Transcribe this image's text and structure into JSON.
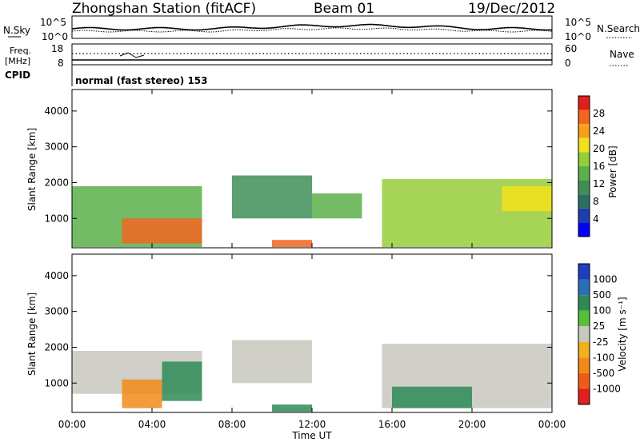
{
  "header": {
    "title": "Zhongshan Station (fitACF)",
    "beam": "Beam 01",
    "date": "19/Dec/2012"
  },
  "top_panels": {
    "nsky_label": "N.Sky",
    "nsearch_label": "N.Search",
    "left_ticks": [
      "10^5",
      "10^0"
    ],
    "right_ticks": [
      "10^5",
      "10^0"
    ],
    "freq_label_1": "Freq.",
    "freq_label_2": "[MHz]",
    "freq_ticks": [
      "18",
      "8"
    ],
    "nave_ticks": [
      "60",
      "0"
    ],
    "nave_label": "Nave",
    "cpid_label": "CPID",
    "mode_text": "normal (fast stereo) 153"
  },
  "power_panel": {
    "ylabel": "Slant Range [km]",
    "yticks": [
      "4000",
      "3000",
      "2000",
      "1000"
    ],
    "colorbar_label": "Power [dB]",
    "colorbar_ticks": [
      "28",
      "24",
      "20",
      "16",
      "12",
      "8",
      "4"
    ],
    "colors": [
      "#0000ff",
      "#1c3fa8",
      "#2d6e63",
      "#3f8e57",
      "#5bb04a",
      "#95cc3a",
      "#f2e21b",
      "#f7a11a",
      "#f26522",
      "#e0201c"
    ]
  },
  "velocity_panel": {
    "ylabel": "Slant Range [km]",
    "yticks": [
      "4000",
      "3000",
      "2000",
      "1000"
    ],
    "colorbar_label": "Velocity [m s⁻¹]",
    "colorbar_ticks": [
      "1000",
      "500",
      "100",
      "25",
      "-25",
      "-100",
      "-500",
      "-1000"
    ],
    "colors": [
      "#1f3fbf",
      "#2a6fb3",
      "#2e8b57",
      "#57c038",
      "#c8c8c0",
      "#f2b01a",
      "#f28a1a",
      "#f25a1a",
      "#e0201c"
    ]
  },
  "x_axis": {
    "ticks": [
      "00:00",
      "04:00",
      "08:00",
      "12:00",
      "16:00",
      "20:00",
      "00:00"
    ],
    "label": "Time UT"
  },
  "chart_data": {
    "type": "heatmap",
    "title": "Zhongshan Station (fitACF)",
    "x_range_hours_ut": [
      0,
      24
    ],
    "y_range_km": [
      180,
      4600
    ],
    "xlabel": "Time UT",
    "ylabel": "Slant Range [km]",
    "panels": [
      {
        "name": "Power",
        "unit": "dB",
        "colorbar_range": [
          0,
          32
        ],
        "regions": [
          {
            "t": [
              0.0,
              6.5
            ],
            "r": [
              200,
              1900
            ],
            "value": 14
          },
          {
            "t": [
              2.5,
              6.5
            ],
            "r": [
              300,
              1000
            ],
            "value": 26
          },
          {
            "t": [
              8.0,
              12.0
            ],
            "r": [
              1000,
              2200
            ],
            "value": 10
          },
          {
            "t": [
              10.0,
              12.0
            ],
            "r": [
              200,
              400
            ],
            "value": 26
          },
          {
            "t": [
              12.0,
              14.5
            ],
            "r": [
              1000,
              1700
            ],
            "value": 14
          },
          {
            "t": [
              15.5,
              24.0
            ],
            "r": [
              200,
              2100
            ],
            "value": 16
          },
          {
            "t": [
              21.5,
              24.0
            ],
            "r": [
              1200,
              1900
            ],
            "value": 22
          }
        ]
      },
      {
        "name": "Velocity",
        "unit": "m/s",
        "colorbar_range": [
          -1000,
          1000
        ],
        "regions": [
          {
            "t": [
              0.0,
              6.5
            ],
            "r": [
              700,
              1900
            ],
            "value": 0
          },
          {
            "t": [
              2.5,
              4.5
            ],
            "r": [
              300,
              1100
            ],
            "value": -150
          },
          {
            "t": [
              4.5,
              6.5
            ],
            "r": [
              500,
              1600
            ],
            "value": 150
          },
          {
            "t": [
              8.0,
              12.0
            ],
            "r": [
              1000,
              2200
            ],
            "value": 0
          },
          {
            "t": [
              10.0,
              12.0
            ],
            "r": [
              200,
              400
            ],
            "value": 150
          },
          {
            "t": [
              15.5,
              24.0
            ],
            "r": [
              300,
              2100
            ],
            "value": 0
          },
          {
            "t": [
              16.0,
              20.0
            ],
            "r": [
              300,
              900
            ],
            "value": 150
          }
        ]
      }
    ]
  }
}
